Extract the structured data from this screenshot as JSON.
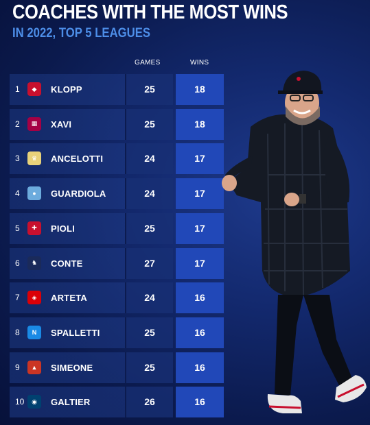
{
  "header": {
    "title": "COACHES WITH THE MOST WINS",
    "subtitle": "IN 2022, TOP 5 LEAGUES"
  },
  "columns": {
    "games": "GAMES",
    "wins": "WINS"
  },
  "colors": {
    "wins_cell": "#2148b8",
    "subtitle": "#4d8ee8"
  },
  "chart_data": {
    "type": "table",
    "title": "COACHES WITH THE MOST WINS",
    "subtitle": "IN 2022, TOP 5 LEAGUES",
    "columns": [
      "GAMES",
      "WINS"
    ],
    "rows": [
      {
        "rank": "1",
        "coach": "KLOPP",
        "games": 25,
        "wins": 18,
        "badge": "liverpool-crest-icon"
      },
      {
        "rank": "2",
        "coach": "XAVI",
        "games": 25,
        "wins": 18,
        "badge": "barcelona-crest-icon"
      },
      {
        "rank": "3",
        "coach": "ANCELOTTI",
        "games": 24,
        "wins": 17,
        "badge": "real-madrid-crest-icon"
      },
      {
        "rank": "4",
        "coach": "GUARDIOLA",
        "games": 24,
        "wins": 17,
        "badge": "man-city-crest-icon"
      },
      {
        "rank": "5",
        "coach": "PIOLI",
        "games": 25,
        "wins": 17,
        "badge": "ac-milan-crest-icon"
      },
      {
        "rank": "6",
        "coach": "CONTE",
        "games": 27,
        "wins": 17,
        "badge": "tottenham-crest-icon"
      },
      {
        "rank": "7",
        "coach": "ARTETA",
        "games": 24,
        "wins": 16,
        "badge": "arsenal-crest-icon"
      },
      {
        "rank": "8",
        "coach": "SPALLETTI",
        "games": 25,
        "wins": 16,
        "badge": "napoli-crest-icon"
      },
      {
        "rank": "9",
        "coach": "SIMEONE",
        "games": 25,
        "wins": 16,
        "badge": "atletico-crest-icon"
      },
      {
        "rank": "10",
        "coach": "GALTIER",
        "games": 26,
        "wins": 16,
        "badge": "psg-crest-icon"
      }
    ]
  }
}
